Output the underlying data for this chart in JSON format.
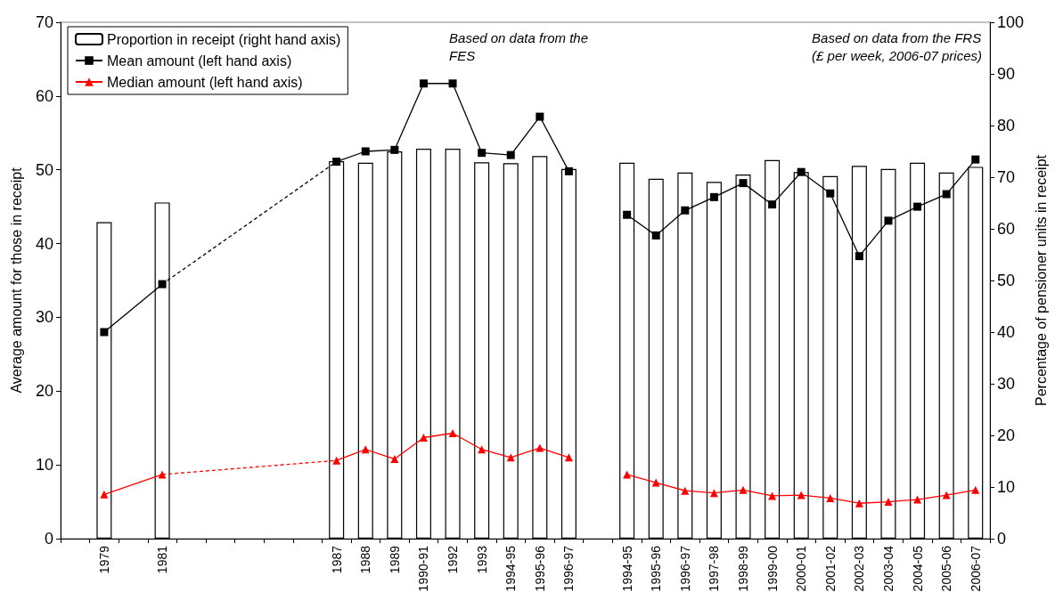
{
  "chart_data": {
    "type": "bar",
    "categories": [
      null,
      "1979",
      null,
      "1981",
      null,
      null,
      null,
      null,
      null,
      "1987",
      "1988",
      "1989",
      "1990-91",
      "1992",
      "1993",
      "1994-95",
      "1995-96",
      "1996-97",
      null,
      "1994-95",
      "1995-96",
      "1996-97",
      "1997-98",
      "1998-99",
      "1999-00",
      "2000-01",
      "2001-02",
      "2002-03",
      "2003-04",
      "2004-05",
      "2005-06",
      "2006-07"
    ],
    "ylabel": "Average amount for those in receipt",
    "y2label": "Percentage of pensioner units in receipt",
    "ylim": [
      0,
      70
    ],
    "yticks": [
      0,
      10,
      20,
      30,
      40,
      50,
      60,
      70
    ],
    "y2lim": [
      0,
      100
    ],
    "y2ticks": [
      0,
      10,
      20,
      30,
      40,
      50,
      60,
      70,
      80,
      90,
      100
    ],
    "grid": false,
    "legend": "top left",
    "annotations": [
      "Based on data from the\nFES",
      "Based on data from the FRS\n(£ per week, 2006-07 prices)"
    ],
    "series": [
      {
        "name": "Proportion in receipt (right hand axis)",
        "axis": "y2",
        "color": "#ffffff",
        "values": [
          null,
          61.3,
          null,
          65.1,
          null,
          null,
          null,
          null,
          null,
          73.1,
          72.8,
          75.0,
          75.5,
          75.5,
          72.9,
          72.7,
          74.1,
          71.6,
          null,
          72.8,
          69.7,
          70.9,
          69.1,
          70.5,
          73.3,
          71.0,
          70.2,
          72.2,
          71.6,
          72.8,
          70.9,
          72.0
        ]
      },
      {
        "name": "Mean amount (left hand axis)",
        "type": "line",
        "axis": "y",
        "color": "#000000",
        "marker": "square",
        "line_style": "solid",
        "values": [
          null,
          null,
          null,
          null,
          null,
          null,
          null,
          null,
          null,
          51.1,
          52.5,
          52.7,
          61.7,
          61.7,
          52.3,
          52.0,
          57.2,
          49.8,
          null,
          null,
          null,
          null,
          null,
          null,
          null,
          null,
          null,
          null,
          null,
          null,
          null,
          null
        ]
      },
      {
        "type": "line",
        "axis": "y",
        "color": "#000000",
        "marker": "square",
        "line_style": "solid",
        "values": [
          null,
          28.0,
          null,
          34.5,
          null,
          null,
          null,
          null,
          null,
          null,
          null,
          null,
          null,
          null,
          null,
          null,
          null,
          null,
          null,
          null,
          null,
          null,
          null,
          null,
          null,
          null,
          null,
          null,
          null,
          null,
          null,
          null
        ]
      },
      {
        "type": "line",
        "axis": "y",
        "color": "#000000",
        "marker": "none",
        "line_style": "dashed",
        "values": [
          null,
          null,
          null,
          34.5,
          null,
          null,
          null,
          null,
          null,
          51.1,
          null,
          null,
          null,
          null,
          null,
          null,
          null,
          null,
          null,
          null,
          null,
          null,
          null,
          null,
          null,
          null,
          null,
          null,
          null,
          null,
          null,
          null
        ]
      },
      {
        "type": "line",
        "axis": "y",
        "color": "#000000",
        "marker": "square",
        "line_style": "solid",
        "values": [
          null,
          null,
          null,
          null,
          null,
          null,
          null,
          null,
          null,
          null,
          null,
          null,
          null,
          null,
          null,
          null,
          null,
          null,
          null,
          43.9,
          41.1,
          44.5,
          46.3,
          48.2,
          45.3,
          49.7,
          46.8,
          38.3,
          43.1,
          45.0,
          46.7,
          51.4
        ]
      },
      {
        "name": "Median amount (left hand axis)",
        "type": "line",
        "axis": "y",
        "color": "#ff0000",
        "marker": "triangle",
        "line_style": "solid",
        "values": [
          null,
          null,
          null,
          null,
          null,
          null,
          null,
          null,
          null,
          10.6,
          12.1,
          10.8,
          13.7,
          14.3,
          12.1,
          11.0,
          12.3,
          11.0,
          null,
          null,
          null,
          null,
          null,
          null,
          null,
          null,
          null,
          null,
          null,
          null,
          null,
          null
        ]
      },
      {
        "type": "line",
        "axis": "y",
        "color": "#ff0000",
        "marker": "triangle",
        "line_style": "solid",
        "values": [
          null,
          6.0,
          null,
          8.7,
          null,
          null,
          null,
          null,
          null,
          null,
          null,
          null,
          null,
          null,
          null,
          null,
          null,
          null,
          null,
          null,
          null,
          null,
          null,
          null,
          null,
          null,
          null,
          null,
          null,
          null,
          null,
          null
        ]
      },
      {
        "type": "line",
        "axis": "y",
        "color": "#ff0000",
        "marker": "none",
        "line_style": "dashed",
        "values": [
          null,
          null,
          null,
          8.7,
          null,
          null,
          null,
          null,
          null,
          10.6,
          null,
          null,
          null,
          null,
          null,
          null,
          null,
          null,
          null,
          null,
          null,
          null,
          null,
          null,
          null,
          null,
          null,
          null,
          null,
          null,
          null,
          null
        ]
      },
      {
        "type": "line",
        "axis": "y",
        "color": "#ff0000",
        "marker": "triangle",
        "line_style": "solid",
        "values": [
          null,
          null,
          null,
          null,
          null,
          null,
          null,
          null,
          null,
          null,
          null,
          null,
          null,
          null,
          null,
          null,
          null,
          null,
          null,
          8.7,
          7.6,
          6.5,
          6.2,
          6.6,
          5.8,
          5.9,
          5.5,
          4.8,
          5.0,
          5.3,
          5.9,
          6.6
        ]
      }
    ]
  }
}
